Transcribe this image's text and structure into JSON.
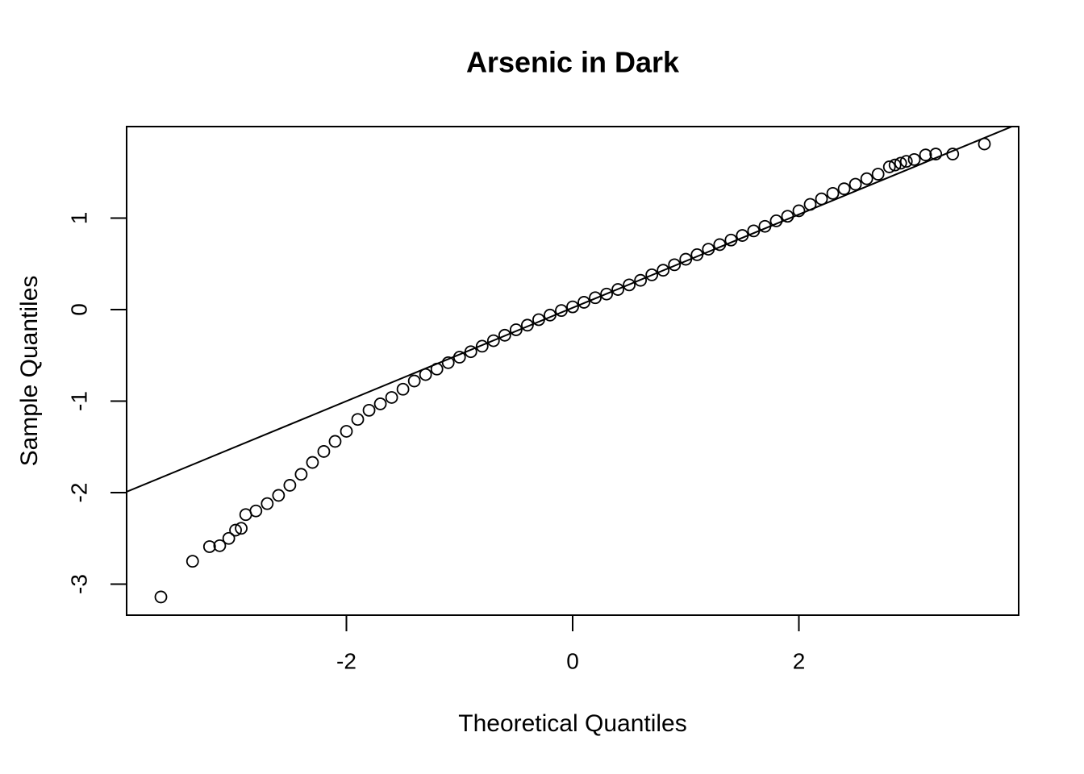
{
  "chart_data": {
    "type": "scatter",
    "title": "Arsenic in Dark",
    "x_label": "Theoretical Quantiles",
    "y_label": "Sample Quantiles",
    "xlim": [
      -3.943,
      3.943
    ],
    "ylim": [
      -3.339,
      2.0
    ],
    "xticks": [
      -2,
      0,
      2
    ],
    "yticks": [
      -3,
      -2,
      -1,
      0,
      1
    ],
    "color": "#000000",
    "reference_line": {
      "intercept": 0.02,
      "slope": 0.51
    },
    "x": [
      -3.64,
      -3.36,
      -3.21,
      -3.12,
      -3.04,
      -2.98,
      -2.93,
      -2.89,
      -2.8,
      -2.7,
      -2.6,
      -2.5,
      -2.4,
      -2.3,
      -2.2,
      -2.1,
      -2.0,
      -1.9,
      -1.8,
      -1.7,
      -1.6,
      -1.5,
      -1.4,
      -1.3,
      -1.2,
      -1.1,
      -1.0,
      -0.9,
      -0.8,
      -0.7,
      -0.6,
      -0.5,
      -0.4,
      -0.3,
      -0.2,
      -0.1,
      0,
      0.1,
      0.2,
      0.3,
      0.4,
      0.5,
      0.6,
      0.7,
      0.8,
      0.9,
      1.0,
      1.1,
      1.2,
      1.3,
      1.4,
      1.5,
      1.6,
      1.7,
      1.8,
      1.9,
      2.0,
      2.1,
      2.2,
      2.3,
      2.4,
      2.5,
      2.6,
      2.7,
      2.8,
      2.85,
      2.9,
      2.95,
      3.02,
      3.12,
      3.21,
      3.36,
      3.64
    ],
    "y": [
      -3.14,
      -2.75,
      -2.59,
      -2.58,
      -2.5,
      -2.41,
      -2.39,
      -2.24,
      -2.2,
      -2.12,
      -2.03,
      -1.92,
      -1.8,
      -1.67,
      -1.55,
      -1.44,
      -1.33,
      -1.2,
      -1.1,
      -1.03,
      -0.96,
      -0.87,
      -0.78,
      -0.71,
      -0.65,
      -0.58,
      -0.52,
      -0.46,
      -0.4,
      -0.34,
      -0.28,
      -0.22,
      -0.17,
      -0.11,
      -0.06,
      -0.01,
      0.03,
      0.08,
      0.13,
      0.17,
      0.22,
      0.27,
      0.32,
      0.38,
      0.43,
      0.49,
      0.55,
      0.6,
      0.66,
      0.71,
      0.76,
      0.81,
      0.86,
      0.91,
      0.97,
      1.02,
      1.08,
      1.15,
      1.21,
      1.27,
      1.32,
      1.37,
      1.43,
      1.48,
      1.56,
      1.58,
      1.6,
      1.62,
      1.64,
      1.69,
      1.7,
      1.7,
      1.81
    ]
  }
}
